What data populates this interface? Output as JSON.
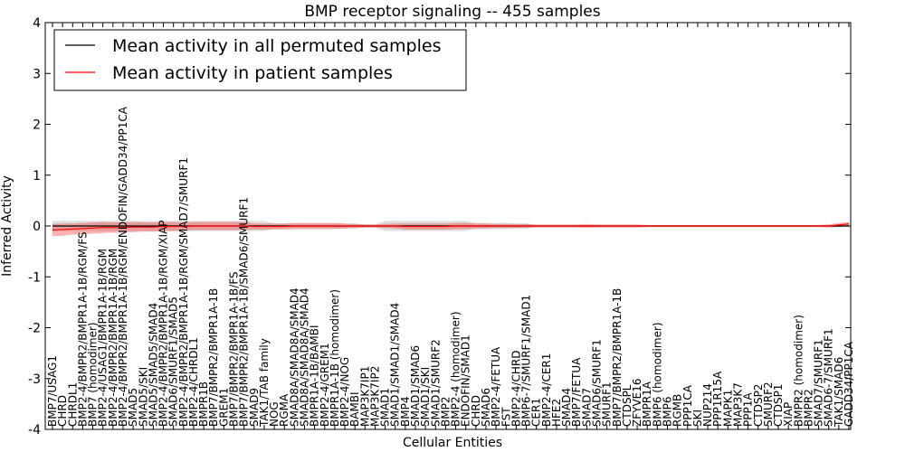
{
  "chart_data": {
    "type": "line",
    "title": "BMP receptor signaling -- 455 samples",
    "xlabel": "Cellular Entities",
    "ylabel": "Inferred Activity",
    "ylim": [
      -4,
      4
    ],
    "yticks": [
      -4,
      -3,
      -2,
      -1,
      0,
      1,
      2,
      3,
      4
    ],
    "grid": false,
    "legend_position": "top-left",
    "categories": [
      "BMP7/USAG1",
      "CHRD",
      "CHRDL1",
      "BMP2-4/BMPR2/BMPR1A-1B/RGM/FS",
      "BMP7 (homodimer)",
      "BMP2-4/USAG1/BMPR1A-1B/RGM",
      "BMP2-4/BMPR2/BMPR1A-1B/RGM",
      "BMP2-4/BMPR2/BMPR1A-1B/RGM/ENDOFIN/GADD34/PP1CA",
      "SMAD5",
      "SMAD5/SKI",
      "SMAD5/SMAD5/SMAD4",
      "BMP2-4/BMPR2/BMPR1A-1B/RGM/XIAP",
      "SMAD6/SMURF1/SMAD5",
      "BMP2-4/BMPR2/BMPR1A-1B/RGM/SMAD7/SMURF1",
      "BMP2-4/CHRDL1",
      "BMPR1B",
      "BMP7/BMPR2/BMPR1A-1B",
      "GREM1",
      "BMP7/BMPR2/BMPR1A-1B/FS",
      "BMP7/BMPR2/BMPR1A-1B/SMAD6/SMURF1",
      "SMAD9",
      "TAK1/TAB family",
      "NOG",
      "RGMA",
      "SMAD8A/SMAD8A/SMAD4",
      "SMAD8A/SMAD8A/SMAD4",
      "BMPR1A-1B/BAMBI",
      "BMP2-4/GREM1",
      "BMPR1A-1B (homodimer)",
      "BMP2-4/NOG",
      "BAMBI",
      "MAP3K7IP1",
      "MAP3K7IP2",
      "SMAD1",
      "SMAD1/SMAD1/SMAD4",
      "BMP4",
      "SMAD1/SMAD6",
      "SMAD1/SKI",
      "SMAD1/SMURF2",
      "BMP2",
      "BMP2-4 (homodimer)",
      "ENDOFIN/SMAD1",
      "CHRD",
      "SMAD6",
      "BMP2-4/FETUA",
      "FST",
      "BMP2-4/CHRD",
      "BMP6-7/SMURF1/SMAD1",
      "CER1",
      "BMP2-4/CER1",
      "HFE2",
      "SMAD4",
      "BMP7/FETUA",
      "SMAD7",
      "SMAD6/SMURF1",
      "SMURF1",
      "BMP7/BMPR2/BMPR1A-1B",
      "CTDSPL",
      "ZFYVE16",
      "BMPR1A",
      "BMP6 (homodimer)",
      "BMP6",
      "RGMB",
      "PPP1CA",
      "SKI",
      "NUP214",
      "PPP1R15A",
      "MAPK1",
      "MAP3K7",
      "PPP1A",
      "CTDSP2",
      "SMURF2",
      "CTDSP1",
      "XIAP",
      "BMPR2 (homodimer)",
      "BMPR2",
      "SMAD7/SMURF1",
      "SMAD6-7/SMURF1",
      "TAK1/SMAD6",
      "GADD34/PP1CA"
    ],
    "series": [
      {
        "name": "Mean activity in all permuted samples",
        "color": "#000000",
        "values": [
          0,
          0,
          0,
          0,
          0,
          0,
          0,
          0,
          0,
          0,
          0,
          0,
          0,
          0,
          0,
          0,
          0,
          0,
          0,
          0,
          0,
          0,
          0,
          0,
          0,
          0,
          0,
          0,
          0,
          0,
          0,
          0,
          0,
          0,
          0,
          0,
          0,
          0,
          0,
          0,
          0,
          0,
          0,
          0,
          0,
          0,
          0,
          0,
          0,
          0,
          0,
          0,
          0,
          0,
          0,
          0,
          0,
          0,
          0,
          0,
          0,
          0,
          0,
          0,
          0,
          0,
          0,
          0,
          0,
          0,
          0,
          0,
          0,
          0,
          0,
          0,
          0,
          0,
          0,
          0
        ],
        "band_half": [
          0.1,
          0.1,
          0.1,
          0.1,
          0.1,
          0.1,
          0.1,
          0.1,
          0.1,
          0.1,
          0.1,
          0.1,
          0.1,
          0.1,
          0.1,
          0.1,
          0.1,
          0.1,
          0.1,
          0.1,
          0.1,
          0.1,
          0.05,
          0.05,
          0.05,
          0.05,
          0.05,
          0.05,
          0.05,
          0.05,
          0.05,
          0.03,
          0.03,
          0.1,
          0.1,
          0.1,
          0.1,
          0.1,
          0.1,
          0.1,
          0.1,
          0.1,
          0.06,
          0.06,
          0.06,
          0.06,
          0.05,
          0.05,
          0.02,
          0.02,
          0.02,
          0.02,
          0.02,
          0.02,
          0.02,
          0.02,
          0.02,
          0.02,
          0.02,
          0.02,
          0.02,
          0.02,
          0.02,
          0.02,
          0.02,
          0.02,
          0.02,
          0.02,
          0.02,
          0.02,
          0.02,
          0.02,
          0.02,
          0.02,
          0.02,
          0.02,
          0.02,
          0.02,
          0.02,
          0.02
        ]
      },
      {
        "name": "Mean activity in patient samples",
        "color": "#ff0000",
        "values": [
          -0.08,
          -0.07,
          -0.06,
          -0.05,
          -0.04,
          -0.03,
          -0.03,
          -0.03,
          -0.02,
          -0.02,
          -0.02,
          -0.01,
          -0.01,
          -0.01,
          0,
          0,
          0,
          0,
          0,
          0,
          -0.01,
          -0.01,
          -0.01,
          -0.01,
          0,
          0,
          0,
          0,
          0,
          0,
          0,
          0,
          0,
          0,
          0,
          -0.01,
          -0.01,
          -0.01,
          -0.01,
          -0.01,
          0,
          0,
          0,
          0,
          0,
          0,
          0,
          0,
          0,
          0,
          0,
          0,
          0,
          0,
          0,
          0,
          0,
          0,
          0,
          0,
          0,
          0,
          0,
          0,
          0,
          0,
          0,
          0,
          0,
          0,
          0,
          0,
          0,
          0,
          0,
          0,
          0,
          0,
          0.02,
          0.04
        ],
        "band_half": [
          0.12,
          0.12,
          0.11,
          0.11,
          0.11,
          0.11,
          0.1,
          0.1,
          0.1,
          0.09,
          0.09,
          0.09,
          0.09,
          0.08,
          0.08,
          0.08,
          0.08,
          0.08,
          0.08,
          0.08,
          0.06,
          0.06,
          0.06,
          0.06,
          0.06,
          0.06,
          0.06,
          0.06,
          0.06,
          0.05,
          0.04,
          0.03,
          0.03,
          0.04,
          0.05,
          0.06,
          0.06,
          0.06,
          0.06,
          0.06,
          0.06,
          0.06,
          0.05,
          0.05,
          0.04,
          0.04,
          0.04,
          0.04,
          0.03,
          0.03,
          0.03,
          0.03,
          0.03,
          0.04,
          0.03,
          0.03,
          0.03,
          0.03,
          0.03,
          0.02,
          0.02,
          0.02,
          0.02,
          0.02,
          0.02,
          0.02,
          0.02,
          0.02,
          0.02,
          0.02,
          0.02,
          0.02,
          0.02,
          0.02,
          0.02,
          0.02,
          0.02,
          0.03,
          0.04,
          0.04
        ]
      }
    ]
  }
}
